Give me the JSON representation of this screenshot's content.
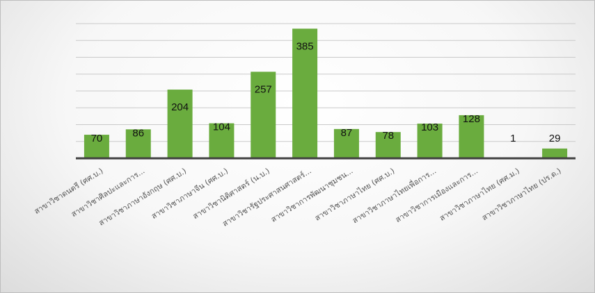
{
  "chart_data": {
    "type": "bar",
    "categories": [
      "สาขาวิชาดนตรี (ศศ.บ.)",
      "สาขาวิชาศิลปะและการ...",
      "สาขาวิชาภาษาอังกฤษ (ศศ.บ.)",
      "สาขาวิชาภาษาจีน (ศศ.บ.)",
      "สาขาวิชานิติศาสตร์ (น.บ.)",
      "สาขาวิชารัฐประศาสนศาสตร์...",
      "สาขาวิชาการพัฒนาชุมชน...",
      "สาขาวิชาภาษาไทย (ศศ.บ.)",
      "สาขาวิชาภาษาไทยเพื่อการ...",
      "สาขาวิชาการเมืองและการ...",
      "สาขาวิชาภาษาไทย (ศศ.ม.)",
      "สาขาวิชาภาษาไทย (ปร.ด.)"
    ],
    "values": [
      70,
      86,
      204,
      104,
      257,
      385,
      87,
      78,
      103,
      128,
      1,
      29
    ],
    "ylim": [
      0,
      400
    ],
    "grid": true,
    "bar_color": "#6aac3e",
    "title": "",
    "xlabel": "",
    "ylabel": ""
  }
}
